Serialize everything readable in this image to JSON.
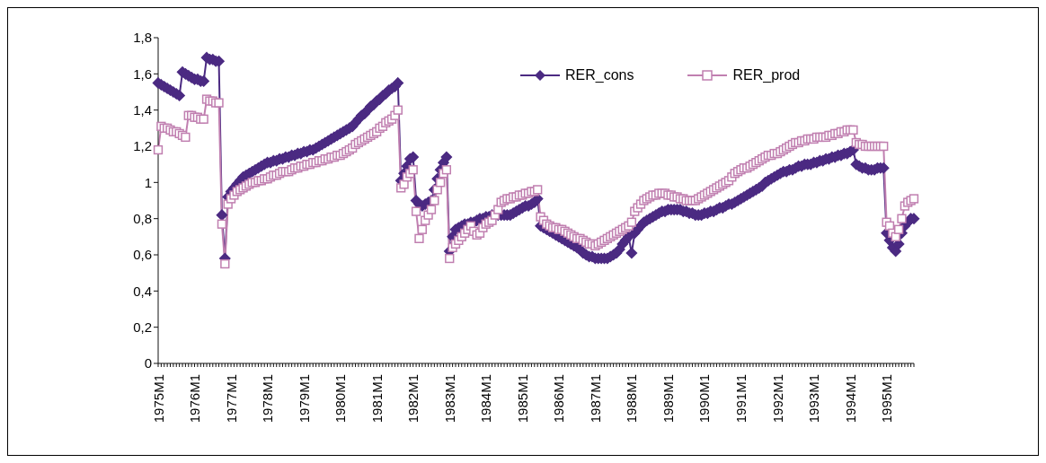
{
  "chart_data": {
    "type": "line",
    "categories": [
      "1975M1",
      null,
      null,
      null,
      null,
      null,
      null,
      null,
      null,
      null,
      null,
      null,
      "1976M1",
      null,
      null,
      null,
      null,
      null,
      null,
      null,
      null,
      null,
      null,
      null,
      "1977M1",
      null,
      null,
      null,
      null,
      null,
      null,
      null,
      null,
      null,
      null,
      null,
      "1978M1",
      null,
      null,
      null,
      null,
      null,
      null,
      null,
      null,
      null,
      null,
      null,
      "1979M1",
      null,
      null,
      null,
      null,
      null,
      null,
      null,
      null,
      null,
      null,
      null,
      "1980M1",
      null,
      null,
      null,
      null,
      null,
      null,
      null,
      null,
      null,
      null,
      null,
      "1981M1",
      null,
      null,
      null,
      null,
      null,
      null,
      null,
      null,
      null,
      null,
      null,
      "1982M1",
      null,
      null,
      null,
      null,
      null,
      null,
      null,
      null,
      null,
      null,
      null,
      "1983M1",
      null,
      null,
      null,
      null,
      null,
      null,
      null,
      null,
      null,
      null,
      null,
      "1984M1",
      null,
      null,
      null,
      null,
      null,
      null,
      null,
      null,
      null,
      null,
      null,
      "1985M1",
      null,
      null,
      null,
      null,
      null,
      null,
      null,
      null,
      null,
      null,
      null,
      "1986M1",
      null,
      null,
      null,
      null,
      null,
      null,
      null,
      null,
      null,
      null,
      null,
      "1987M1",
      null,
      null,
      null,
      null,
      null,
      null,
      null,
      null,
      null,
      null,
      null,
      "1988M1",
      null,
      null,
      null,
      null,
      null,
      null,
      null,
      null,
      null,
      null,
      null,
      "1989M1",
      null,
      null,
      null,
      null,
      null,
      null,
      null,
      null,
      null,
      null,
      null,
      "1990M1",
      null,
      null,
      null,
      null,
      null,
      null,
      null,
      null,
      null,
      null,
      null,
      "1991M1",
      null,
      null,
      null,
      null,
      null,
      null,
      null,
      null,
      null,
      null,
      null,
      "1992M1",
      null,
      null,
      null,
      null,
      null,
      null,
      null,
      null,
      null,
      null,
      null,
      "1993M1",
      null,
      null,
      null,
      null,
      null,
      null,
      null,
      null,
      null,
      null,
      null,
      "1994M1",
      null,
      null,
      null,
      null,
      null,
      null,
      null,
      null,
      null,
      null,
      null,
      "1995M1",
      null,
      null,
      null,
      null,
      null,
      null,
      null,
      null,
      null
    ],
    "series": [
      {
        "name": "RER_cons",
        "color": "#4b2a82",
        "marker": "diamond",
        "values": [
          1.55,
          1.54,
          1.53,
          1.52,
          1.51,
          1.5,
          1.49,
          1.48,
          1.61,
          1.6,
          1.59,
          1.58,
          1.57,
          1.57,
          1.56,
          1.56,
          1.69,
          1.68,
          1.68,
          1.67,
          1.67,
          0.82,
          0.58,
          0.92,
          0.95,
          0.97,
          0.99,
          1.01,
          1.03,
          1.04,
          1.05,
          1.06,
          1.07,
          1.08,
          1.09,
          1.1,
          1.11,
          1.11,
          1.12,
          1.12,
          1.13,
          1.13,
          1.14,
          1.14,
          1.15,
          1.15,
          1.16,
          1.16,
          1.17,
          1.17,
          1.18,
          1.18,
          1.19,
          1.2,
          1.21,
          1.22,
          1.23,
          1.24,
          1.25,
          1.26,
          1.27,
          1.28,
          1.29,
          1.3,
          1.31,
          1.33,
          1.35,
          1.37,
          1.38,
          1.4,
          1.42,
          1.43,
          1.45,
          1.46,
          1.48,
          1.49,
          1.51,
          1.52,
          1.53,
          1.55,
          1.01,
          1.05,
          1.09,
          1.13,
          1.14,
          0.9,
          0.88,
          0.87,
          0.88,
          0.89,
          0.9,
          0.96,
          1.02,
          1.07,
          1.11,
          1.14,
          0.62,
          0.7,
          0.74,
          0.75,
          0.76,
          0.77,
          0.77,
          0.78,
          0.78,
          0.79,
          0.8,
          0.8,
          0.81,
          0.81,
          0.82,
          0.82,
          0.82,
          0.82,
          0.82,
          0.82,
          0.82,
          0.83,
          0.84,
          0.85,
          0.86,
          0.87,
          0.87,
          0.88,
          0.89,
          0.91,
          0.76,
          0.75,
          0.74,
          0.73,
          0.72,
          0.71,
          0.7,
          0.69,
          0.68,
          0.67,
          0.66,
          0.65,
          0.64,
          0.63,
          0.61,
          0.6,
          0.59,
          0.59,
          0.58,
          0.58,
          0.58,
          0.58,
          0.58,
          0.59,
          0.6,
          0.61,
          0.63,
          0.66,
          0.68,
          0.7,
          0.61,
          0.72,
          0.74,
          0.76,
          0.78,
          0.79,
          0.8,
          0.81,
          0.82,
          0.83,
          0.84,
          0.84,
          0.85,
          0.85,
          0.85,
          0.85,
          0.85,
          0.84,
          0.84,
          0.83,
          0.83,
          0.82,
          0.82,
          0.82,
          0.83,
          0.83,
          0.84,
          0.84,
          0.85,
          0.86,
          0.86,
          0.87,
          0.88,
          0.88,
          0.89,
          0.9,
          0.91,
          0.92,
          0.93,
          0.94,
          0.95,
          0.96,
          0.97,
          0.98,
          1.0,
          1.01,
          1.02,
          1.03,
          1.04,
          1.05,
          1.06,
          1.06,
          1.07,
          1.07,
          1.08,
          1.09,
          1.09,
          1.1,
          1.1,
          1.1,
          1.11,
          1.11,
          1.12,
          1.12,
          1.13,
          1.13,
          1.14,
          1.14,
          1.15,
          1.15,
          1.16,
          1.16,
          1.17,
          1.18,
          1.1,
          1.09,
          1.08,
          1.08,
          1.07,
          1.07,
          1.07,
          1.08,
          1.08,
          1.08,
          0.72,
          0.68,
          0.64,
          0.62,
          0.66,
          0.72,
          0.76,
          0.78,
          0.8,
          0.8
        ]
      },
      {
        "name": "RER_prod",
        "color": "#c07fb0",
        "marker": "square",
        "values": [
          1.18,
          1.31,
          1.3,
          1.3,
          1.29,
          1.28,
          1.28,
          1.27,
          1.26,
          1.25,
          1.37,
          1.37,
          1.36,
          1.36,
          1.35,
          1.35,
          1.46,
          1.45,
          1.45,
          1.44,
          1.44,
          0.77,
          0.55,
          0.88,
          0.91,
          0.93,
          0.95,
          0.96,
          0.97,
          0.98,
          0.99,
          1.0,
          1.0,
          1.01,
          1.01,
          1.02,
          1.02,
          1.03,
          1.04,
          1.04,
          1.05,
          1.06,
          1.06,
          1.06,
          1.07,
          1.08,
          1.08,
          1.09,
          1.09,
          1.1,
          1.1,
          1.11,
          1.11,
          1.12,
          1.12,
          1.13,
          1.13,
          1.14,
          1.14,
          1.15,
          1.15,
          1.16,
          1.17,
          1.18,
          1.19,
          1.21,
          1.22,
          1.23,
          1.24,
          1.25,
          1.26,
          1.27,
          1.28,
          1.3,
          1.31,
          1.33,
          1.34,
          1.35,
          1.37,
          1.4,
          0.97,
          0.99,
          1.03,
          1.05,
          1.07,
          0.84,
          0.69,
          0.74,
          0.79,
          0.82,
          0.85,
          0.9,
          0.96,
          1.0,
          1.05,
          1.07,
          0.58,
          0.64,
          0.66,
          0.68,
          0.7,
          0.72,
          0.74,
          0.76,
          0.73,
          0.71,
          0.72,
          0.75,
          0.77,
          0.78,
          0.79,
          0.82,
          0.85,
          0.89,
          0.9,
          0.91,
          0.91,
          0.92,
          0.92,
          0.93,
          0.93,
          0.94,
          0.94,
          0.95,
          0.95,
          0.96,
          0.81,
          0.79,
          0.77,
          0.76,
          0.75,
          0.75,
          0.74,
          0.74,
          0.73,
          0.72,
          0.71,
          0.7,
          0.69,
          0.69,
          0.68,
          0.67,
          0.66,
          0.66,
          0.65,
          0.66,
          0.67,
          0.68,
          0.69,
          0.7,
          0.71,
          0.72,
          0.73,
          0.74,
          0.75,
          0.76,
          0.78,
          0.84,
          0.86,
          0.88,
          0.9,
          0.91,
          0.92,
          0.93,
          0.93,
          0.94,
          0.94,
          0.94,
          0.93,
          0.93,
          0.92,
          0.92,
          0.91,
          0.91,
          0.9,
          0.9,
          0.9,
          0.9,
          0.91,
          0.92,
          0.93,
          0.94,
          0.95,
          0.96,
          0.97,
          0.98,
          0.99,
          1.0,
          1.01,
          1.03,
          1.05,
          1.06,
          1.07,
          1.08,
          1.08,
          1.09,
          1.1,
          1.11,
          1.12,
          1.13,
          1.14,
          1.15,
          1.15,
          1.16,
          1.16,
          1.17,
          1.18,
          1.19,
          1.2,
          1.21,
          1.22,
          1.22,
          1.23,
          1.23,
          1.24,
          1.24,
          1.24,
          1.25,
          1.25,
          1.25,
          1.25,
          1.26,
          1.26,
          1.27,
          1.27,
          1.28,
          1.28,
          1.29,
          1.29,
          1.29,
          1.22,
          1.21,
          1.21,
          1.2,
          1.2,
          1.2,
          1.2,
          1.2,
          1.2,
          1.2,
          0.78,
          0.76,
          0.72,
          0.7,
          0.74,
          0.8,
          0.87,
          0.89,
          0.9,
          0.91
        ]
      }
    ],
    "ylim": [
      0,
      1.8
    ],
    "yticks": [
      0,
      {
        "value": 0.2,
        "label": "0,2"
      },
      {
        "value": 0.4,
        "label": "0,4"
      },
      {
        "value": 0.6,
        "label": "0,6"
      },
      {
        "value": 0.8,
        "label": "0,8"
      },
      1,
      {
        "value": 1.2,
        "label": "1,2"
      },
      {
        "value": 1.4,
        "label": "1,4"
      },
      {
        "value": 1.6,
        "label": "1,6"
      },
      {
        "value": 1.8,
        "label": "1,8"
      }
    ],
    "grid": false,
    "legend": "top right",
    "line_style": "solid"
  }
}
